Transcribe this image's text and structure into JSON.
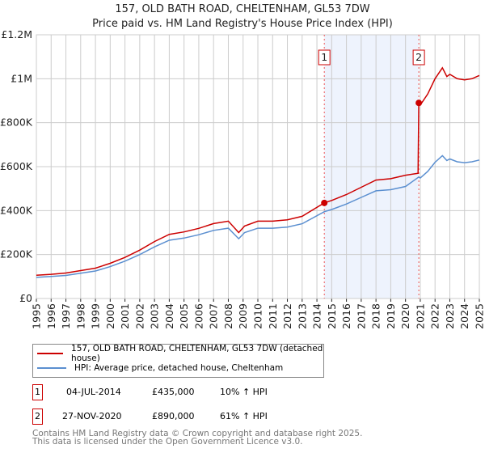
{
  "chart_data": {
    "type": "line",
    "title": "157, OLD BATH ROAD, CHELTENHAM, GL53 7DW",
    "subtitle": "Price paid vs. HM Land Registry's House Price Index (HPI)",
    "xlim": [
      1995,
      2025
    ],
    "ylim": [
      0,
      1200000
    ],
    "yticks": [
      {
        "v": 0,
        "l": "£0"
      },
      {
        "v": 200000,
        "l": "£200K"
      },
      {
        "v": 400000,
        "l": "£400K"
      },
      {
        "v": 600000,
        "l": "£600K"
      },
      {
        "v": 800000,
        "l": "£800K"
      },
      {
        "v": 1000000,
        "l": "£1M"
      },
      {
        "v": 1200000,
        "l": "£1.2M"
      }
    ],
    "xticks": [
      "1995",
      "1996",
      "1997",
      "1998",
      "1999",
      "2000",
      "2001",
      "2002",
      "2003",
      "2004",
      "2005",
      "2006",
      "2007",
      "2008",
      "2009",
      "2010",
      "2011",
      "2012",
      "2013",
      "2014",
      "2015",
      "2016",
      "2017",
      "2018",
      "2019",
      "2020",
      "2021",
      "2022",
      "2023",
      "2024",
      "2025"
    ],
    "grid": true,
    "series": [
      {
        "name": "157, OLD BATH ROAD, CHELTENHAM, GL53 7DW (detached house)",
        "color": "#cc0000",
        "x": [
          1995,
          1996,
          1997,
          1998,
          1999,
          2000,
          2001,
          2002,
          2003,
          2004,
          2005,
          2006,
          2007,
          2008,
          2008.7,
          2009.1,
          2010,
          2011,
          2012,
          2013,
          2014.5,
          2015,
          2016,
          2017,
          2018,
          2019,
          2020,
          2020.85,
          2020.9,
          2021,
          2021.5,
          2022,
          2022.5,
          2022.8,
          2023,
          2023.5,
          2024,
          2024.5,
          2025
        ],
        "y": [
          106000,
          110000,
          116000,
          127000,
          138000,
          160000,
          187000,
          220000,
          259000,
          292000,
          303000,
          319000,
          341000,
          352000,
          300000,
          330000,
          352000,
          352000,
          358000,
          374000,
          435000,
          446000,
          473000,
          506000,
          539000,
          545000,
          561000,
          570000,
          890000,
          880000,
          930000,
          1000000,
          1050000,
          1010000,
          1020000,
          1000000,
          995000,
          1000000,
          1015000
        ]
      },
      {
        "name": "HPI: Average price, detached house, Cheltenham",
        "color": "#5b8fd0",
        "x": [
          1995,
          1996,
          1997,
          1998,
          1999,
          2000,
          2001,
          2002,
          2003,
          2004,
          2005,
          2006,
          2007,
          2008,
          2008.7,
          2009.1,
          2010,
          2011,
          2012,
          2013,
          2014.5,
          2015,
          2016,
          2017,
          2018,
          2019,
          2020,
          2020.9,
          2021,
          2021.5,
          2022,
          2022.5,
          2022.8,
          2023,
          2023.5,
          2024,
          2024.5,
          2025
        ],
        "y": [
          96000,
          100000,
          105000,
          115000,
          125000,
          145000,
          170000,
          200000,
          235000,
          265000,
          275000,
          290000,
          310000,
          320000,
          272000,
          300000,
          320000,
          320000,
          325000,
          340000,
          395000,
          405000,
          430000,
          460000,
          490000,
          495000,
          510000,
          553000,
          548000,
          578000,
          620000,
          650000,
          628000,
          635000,
          622000,
          618000,
          622000,
          630000
        ]
      }
    ],
    "sales": [
      {
        "id": "1",
        "x": 2014.5,
        "y": 435000,
        "date": "04-JUL-2014",
        "price": "£435,000",
        "delta": "10% ↑ HPI"
      },
      {
        "id": "2",
        "x": 2020.9,
        "y": 890000,
        "date": "27-NOV-2020",
        "price": "£890,000",
        "delta": "61% ↑ HPI"
      }
    ],
    "legend": "bottom"
  },
  "footer": {
    "line1": "Contains HM Land Registry data © Crown copyright and database right 2025.",
    "line2": "This data is licensed under the Open Government Licence v3.0."
  }
}
